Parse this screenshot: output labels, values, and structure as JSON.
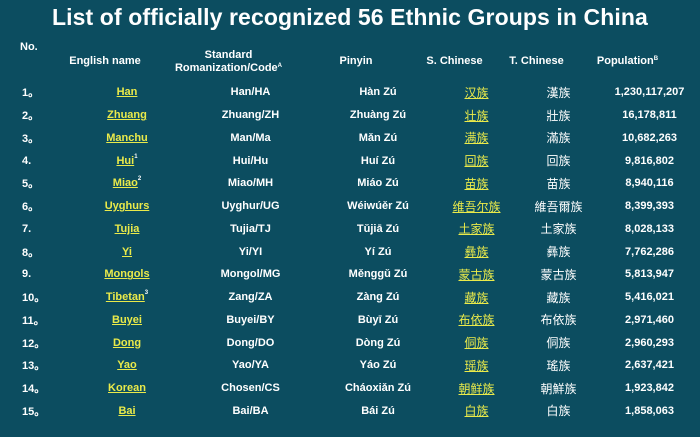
{
  "title": "List of officially recognized 56 Ethnic Groups in China",
  "headers": {
    "no": "No.",
    "english": "English name",
    "romanization_line1": "Standard",
    "romanization_line2": "Romanization/Code",
    "romanization_sup": "A",
    "pinyin": "Pinyin",
    "s_chinese": "S. Chinese",
    "t_chinese": "T. Chinese",
    "population": "Population",
    "population_sup": "B"
  },
  "rows": [
    {
      "no": "1。",
      "english": "Han",
      "sup": "",
      "romanization": "Han/HA",
      "pinyin": "Hàn Zú",
      "s_chinese": "汉族",
      "t_chinese": "漢族",
      "population": "1,230,117,207"
    },
    {
      "no": "2。",
      "english": "Zhuang",
      "sup": "",
      "romanization": "Zhuang/ZH",
      "pinyin": "Zhuàng Zú",
      "s_chinese": "壮族",
      "t_chinese": "壯族",
      "population": "16,178,811"
    },
    {
      "no": "3。",
      "english": "Manchu",
      "sup": "",
      "romanization": "Man/Ma",
      "pinyin": "Mǎn Zú",
      "s_chinese": "满族",
      "t_chinese": "滿族",
      "population": "10,682,263"
    },
    {
      "no": "4.",
      "english": "Hui",
      "sup": "1",
      "romanization": "Hui/Hu",
      "pinyin": "Huí Zú",
      "s_chinese": "回族",
      "t_chinese": "回族",
      "population": "9,816,802"
    },
    {
      "no": "5。",
      "english": "Miao",
      "sup": "2",
      "romanization": "Miao/MH",
      "pinyin": "Miáo Zú",
      "s_chinese": "苗族",
      "t_chinese": "苗族",
      "population": "8,940,116"
    },
    {
      "no": "6。",
      "english": "Uyghurs",
      "sup": "",
      "romanization": "Uyghur/UG",
      "pinyin": "Wéiwúěr Zú",
      "s_chinese": "维吾尔族",
      "t_chinese": "維吾爾族",
      "population": "8,399,393"
    },
    {
      "no": "7.",
      "english": "Tujia",
      "sup": "",
      "romanization": "Tujia/TJ",
      "pinyin": "Tǔjiā Zú",
      "s_chinese": "土家族",
      "t_chinese": "土家族",
      "population": "8,028,133"
    },
    {
      "no": "8。",
      "english": "Yi",
      "sup": "",
      "romanization": "Yi/YI",
      "pinyin": "Yí Zú",
      "s_chinese": "彝族",
      "t_chinese": "彝族",
      "population": "7,762,286"
    },
    {
      "no": "9.",
      "english": "Mongols",
      "sup": "",
      "romanization": "Mongol/MG",
      "pinyin": "Měnggǔ Zú",
      "s_chinese": "蒙古族",
      "t_chinese": "蒙古族",
      "population": "5,813,947"
    },
    {
      "no": "10。",
      "english": "Tibetan",
      "sup": "3",
      "romanization": "Zang/ZA",
      "pinyin": "Zàng Zú",
      "s_chinese": "藏族",
      "t_chinese": "藏族",
      "population": "5,416,021"
    },
    {
      "no": "11。",
      "english": "Buyei",
      "sup": "",
      "romanization": "Buyei/BY",
      "pinyin": "Bùyī Zú",
      "s_chinese": "布依族",
      "t_chinese": "布依族",
      "population": "2,971,460"
    },
    {
      "no": "12。",
      "english": "Dong",
      "sup": "",
      "romanization": "Dong/DO",
      "pinyin": "Dòng Zú",
      "s_chinese": "侗族",
      "t_chinese": "侗族",
      "population": "2,960,293"
    },
    {
      "no": "13。",
      "english": "Yao",
      "sup": "",
      "romanization": "Yao/YA",
      "pinyin": "Yáo Zú",
      "s_chinese": "瑶族",
      "t_chinese": "瑤族",
      "population": "2,637,421"
    },
    {
      "no": "14。",
      "english": "Korean",
      "sup": "",
      "romanization": "Chosen/CS",
      "pinyin": "Cháoxiǎn Zú",
      "s_chinese": "朝鲜族",
      "t_chinese": "朝鮮族",
      "population": "1,923,842"
    },
    {
      "no": "15。",
      "english": "Bai",
      "sup": "",
      "romanization": "Bai/BA",
      "pinyin": "Bái Zú",
      "s_chinese": "白族",
      "t_chinese": "白族",
      "population": "1,858,063"
    }
  ],
  "colors": {
    "background": "#0c4d60",
    "text": "#ffffff",
    "link": "#eaea4a"
  }
}
